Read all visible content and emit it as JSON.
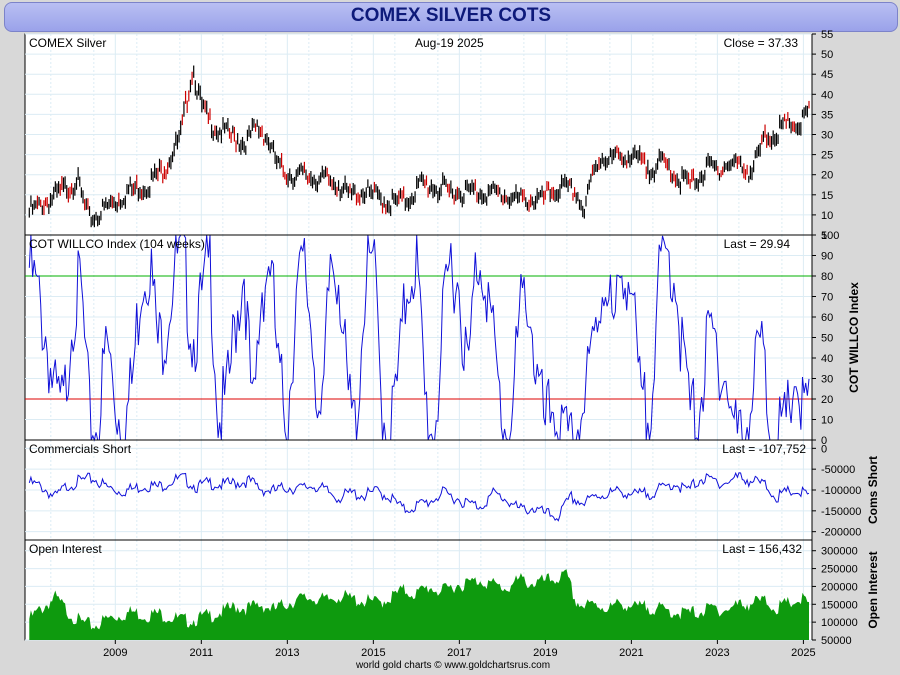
{
  "header": {
    "title": "COMEX SILVER COTS"
  },
  "footer": {
    "credit": "world gold charts © www.goldchartsrus.com"
  },
  "colors": {
    "background": "#ffffff",
    "grid": "#dcecf4",
    "price_up": "#000000",
    "price_down": "#cc0000",
    "willco_line": "#1010d8",
    "threshold_high": "#00b000",
    "threshold_low": "#dd0000",
    "coms_line": "#1010d8",
    "open_interest_fill": "#0e9a0e"
  },
  "chart_data": [
    {
      "type": "line",
      "panel": "price",
      "title": "COMEX Silver",
      "date_label": "Aug-19  2025",
      "last_label": "Close = 37.33",
      "ylim": [
        5,
        55
      ],
      "yticks": [
        "5",
        "10",
        "15",
        "20",
        "25",
        "30",
        "35",
        "40",
        "45",
        "50",
        "55"
      ],
      "ylabel": "",
      "x": [
        2007.5,
        2008.0,
        2008.25,
        2008.6,
        2008.9,
        2009.3,
        2009.8,
        2010.3,
        2010.7,
        2011.0,
        2011.3,
        2011.5,
        2011.8,
        2012.0,
        2012.5,
        2012.8,
        2013.0,
        2013.3,
        2013.6,
        2013.9,
        2014.3,
        2014.7,
        2014.9,
        2015.3,
        2015.7,
        2015.9,
        2016.3,
        2016.6,
        2016.9,
        2017.3,
        2017.7,
        2018.0,
        2018.4,
        2018.8,
        2019.0,
        2019.4,
        2019.7,
        2019.9,
        2020.2,
        2020.4,
        2020.6,
        2020.8,
        2021.0,
        2021.3,
        2021.6,
        2021.9,
        2022.3,
        2022.6,
        2022.9,
        2023.3,
        2023.6,
        2023.9,
        2024.3,
        2024.6,
        2024.9,
        2025.2,
        2025.4,
        2025.63
      ],
      "values": [
        12,
        15,
        17,
        20,
        10,
        13,
        17,
        19,
        24,
        30,
        48,
        38,
        33,
        32,
        29,
        33,
        31,
        23,
        21,
        21,
        20,
        19,
        16,
        17,
        15,
        14,
        15,
        19,
        18,
        17,
        17,
        17,
        16.5,
        15,
        15,
        15,
        17,
        18,
        17,
        12,
        21,
        26,
        25,
        26,
        25,
        23,
        24,
        20,
        19,
        23,
        23,
        24,
        22,
        30,
        32,
        34,
        33,
        37.33
      ]
    },
    {
      "type": "line",
      "panel": "willco",
      "title": "COT WILLCO Index (104 weeks)",
      "last_label": "Last = 29.94",
      "ylabel": "COT WILLCO Index",
      "ylim": [
        0,
        100
      ],
      "yticks": [
        "0",
        "10",
        "20",
        "30",
        "40",
        "50",
        "60",
        "70",
        "80",
        "90",
        "100"
      ],
      "thresholds": [
        80,
        20
      ],
      "x": [
        2007.5,
        2007.7,
        2007.9,
        2008.1,
        2008.3,
        2008.5,
        2008.7,
        2008.9,
        2009.1,
        2009.3,
        2009.5,
        2009.7,
        2009.9,
        2010.1,
        2010.3,
        2010.5,
        2010.7,
        2010.9,
        2011.1,
        2011.3,
        2011.5,
        2011.7,
        2011.9,
        2012.1,
        2012.3,
        2012.5,
        2012.7,
        2012.9,
        2013.1,
        2013.3,
        2013.5,
        2013.7,
        2013.9,
        2014.1,
        2014.3,
        2014.5,
        2014.7,
        2014.9,
        2015.1,
        2015.3,
        2015.5,
        2015.7,
        2015.9,
        2016.1,
        2016.3,
        2016.5,
        2016.7,
        2016.9,
        2017.1,
        2017.3,
        2017.5,
        2017.7,
        2017.9,
        2018.1,
        2018.3,
        2018.5,
        2018.7,
        2018.9,
        2019.1,
        2019.3,
        2019.5,
        2019.7,
        2019.9,
        2020.1,
        2020.3,
        2020.5,
        2020.7,
        2020.9,
        2021.1,
        2021.3,
        2021.5,
        2021.7,
        2021.9,
        2022.1,
        2022.3,
        2022.5,
        2022.7,
        2022.9,
        2023.1,
        2023.3,
        2023.5,
        2023.7,
        2023.9,
        2024.1,
        2024.3,
        2024.5,
        2024.7,
        2024.9,
        2025.1,
        2025.3,
        2025.5,
        2025.63
      ],
      "values": [
        95,
        80,
        60,
        30,
        25,
        75,
        85,
        20,
        15,
        60,
        30,
        15,
        40,
        90,
        100,
        55,
        70,
        100,
        95,
        60,
        75,
        100,
        20,
        30,
        70,
        95,
        15,
        85,
        100,
        40,
        20,
        80,
        95,
        60,
        10,
        100,
        95,
        30,
        15,
        85,
        100,
        25,
        15,
        45,
        90,
        100,
        30,
        10,
        60,
        100,
        85,
        40,
        100,
        95,
        55,
        20,
        15,
        70,
        85,
        40,
        15,
        30,
        10,
        5,
        20,
        40,
        70,
        95,
        60,
        100,
        85,
        30,
        20,
        80,
        100,
        95,
        50,
        20,
        30,
        60,
        55,
        40,
        15,
        10,
        30,
        60,
        20,
        10,
        15,
        45,
        20,
        29.94
      ]
    },
    {
      "type": "line",
      "panel": "commercials_short",
      "title": "Commercials Short",
      "last_label": "Last = -107,752",
      "ylabel": "Coms Short",
      "ylim": [
        -220000,
        20000
      ],
      "yticks": [
        "0",
        "-50000",
        "-100000",
        "-150000",
        "-200000"
      ],
      "x": [
        2007.5,
        2007.8,
        2008.1,
        2008.4,
        2008.7,
        2009.0,
        2009.3,
        2009.6,
        2009.9,
        2010.2,
        2010.5,
        2010.8,
        2011.1,
        2011.4,
        2011.7,
        2012.0,
        2012.3,
        2012.6,
        2012.9,
        2013.2,
        2013.5,
        2013.8,
        2014.1,
        2014.4,
        2014.7,
        2015.0,
        2015.3,
        2015.6,
        2015.9,
        2016.2,
        2016.5,
        2016.8,
        2017.1,
        2017.4,
        2017.7,
        2018.0,
        2018.3,
        2018.6,
        2018.9,
        2019.2,
        2019.5,
        2019.8,
        2020.1,
        2020.4,
        2020.7,
        2021.0,
        2021.3,
        2021.6,
        2021.9,
        2022.2,
        2022.5,
        2022.8,
        2023.1,
        2023.4,
        2023.7,
        2024.0,
        2024.3,
        2024.6,
        2024.9,
        2025.2,
        2025.5,
        2025.63
      ],
      "values": [
        -75000,
        -85000,
        -110000,
        -80000,
        -70000,
        -65000,
        -85000,
        -95000,
        -90000,
        -80000,
        -85000,
        -70000,
        -65000,
        -85000,
        -75000,
        -80000,
        -75000,
        -70000,
        -90000,
        -95000,
        -85000,
        -90000,
        -80000,
        -95000,
        -110000,
        -100000,
        -105000,
        -95000,
        -110000,
        -140000,
        -130000,
        -120000,
        -100000,
        -110000,
        -125000,
        -130000,
        -100000,
        -115000,
        -140000,
        -135000,
        -150000,
        -155000,
        -110000,
        -125000,
        -105000,
        -100000,
        -95000,
        -105000,
        -100000,
        -90000,
        -75000,
        -95000,
        -65000,
        -70000,
        -75000,
        -60000,
        -70000,
        -80000,
        -110000,
        -95000,
        -100000,
        -107752
      ]
    },
    {
      "type": "area",
      "panel": "open_interest",
      "title": "Open Interest",
      "last_label": "Last = 156,432",
      "ylabel": "Open Interest",
      "ylim": [
        50000,
        330000
      ],
      "yticks": [
        "50000",
        "100000",
        "150000",
        "200000",
        "250000",
        "300000"
      ],
      "x": [
        2007.5,
        2007.8,
        2008.1,
        2008.4,
        2008.7,
        2009.0,
        2009.3,
        2009.6,
        2009.9,
        2010.2,
        2010.5,
        2010.8,
        2011.1,
        2011.4,
        2011.7,
        2012.0,
        2012.3,
        2012.6,
        2012.9,
        2013.2,
        2013.5,
        2013.8,
        2014.1,
        2014.4,
        2014.7,
        2015.0,
        2015.3,
        2015.6,
        2015.9,
        2016.2,
        2016.5,
        2016.8,
        2017.1,
        2017.4,
        2017.7,
        2018.0,
        2018.3,
        2018.6,
        2018.9,
        2019.2,
        2019.5,
        2019.8,
        2020.0,
        2020.2,
        2020.4,
        2020.7,
        2021.0,
        2021.3,
        2021.6,
        2021.9,
        2022.2,
        2022.5,
        2022.8,
        2023.1,
        2023.4,
        2023.7,
        2024.0,
        2024.3,
        2024.6,
        2024.9,
        2025.2,
        2025.5,
        2025.63
      ],
      "values": [
        120000,
        150000,
        180000,
        140000,
        110000,
        100000,
        120000,
        130000,
        140000,
        130000,
        135000,
        125000,
        115000,
        120000,
        130000,
        140000,
        155000,
        150000,
        160000,
        145000,
        165000,
        175000,
        180000,
        170000,
        185000,
        175000,
        170000,
        165000,
        180000,
        200000,
        190000,
        210000,
        195000,
        215000,
        220000,
        230000,
        215000,
        205000,
        230000,
        220000,
        225000,
        235000,
        240000,
        170000,
        155000,
        160000,
        150000,
        165000,
        150000,
        155000,
        145000,
        140000,
        135000,
        140000,
        150000,
        145000,
        160000,
        165000,
        170000,
        150000,
        165000,
        175000,
        156432
      ]
    }
  ],
  "x_axis": {
    "range": [
      2007.4,
      2025.7
    ],
    "ticks": [
      "2009",
      "2011",
      "2013",
      "2015",
      "2017",
      "2019",
      "2021",
      "2023",
      "2025"
    ]
  }
}
